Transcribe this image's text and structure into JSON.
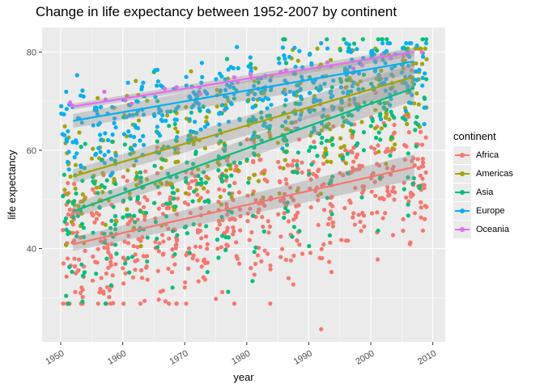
{
  "chart_data": {
    "type": "scatter",
    "title": "Change in life expectancy between 1952-2007 by continent",
    "xlabel": "year",
    "ylabel": "life expectancy",
    "xlim": [
      1947,
      2012
    ],
    "ylim": [
      21,
      85
    ],
    "x_ticks": [
      1950,
      1960,
      1970,
      1980,
      1990,
      2000,
      2010
    ],
    "y_ticks": [
      40,
      60,
      80
    ],
    "grid": true,
    "legend": {
      "title": "continent",
      "position": "right"
    },
    "series": [
      {
        "name": "Africa",
        "color": "#F8766D",
        "y_range": [
          28.8,
          76.4
        ],
        "mean_start": 39.1,
        "mean_slope": 0.31,
        "spread": 8,
        "trend": [
          [
            1952,
            40.9
          ],
          [
            2007,
            56.6
          ]
        ],
        "n": 624
      },
      {
        "name": "Americas",
        "color": "#A3A500",
        "y_range": [
          37.6,
          80.7
        ],
        "mean_start": 53.3,
        "mean_slope": 0.36,
        "spread": 7,
        "trend": [
          [
            1952,
            54.7
          ],
          [
            2007,
            75.0
          ]
        ],
        "n": 300
      },
      {
        "name": "Asia",
        "color": "#00BF7D",
        "y_range": [
          28.8,
          82.6
        ],
        "mean_start": 46.3,
        "mean_slope": 0.45,
        "spread": 10,
        "trend": [
          [
            1952,
            47.6
          ],
          [
            2007,
            72.7
          ]
        ],
        "n": 396
      },
      {
        "name": "Europe",
        "color": "#00B0F6",
        "y_range": [
          43.6,
          81.8
        ],
        "mean_start": 64.4,
        "mean_slope": 0.22,
        "spread": 4.5,
        "trend": [
          [
            1952,
            66.0
          ],
          [
            2007,
            78.1
          ]
        ],
        "n": 360
      },
      {
        "name": "Oceania",
        "color": "#E76BF3",
        "y_range": [
          69.1,
          81.2
        ],
        "mean_start": 69.3,
        "mean_slope": 0.2,
        "spread": 0.8,
        "trend": [
          [
            1952,
            68.9
          ],
          [
            2007,
            80.0
          ]
        ],
        "n": 24
      }
    ],
    "outliers": [
      {
        "series": "Africa",
        "x": 1992,
        "y": 23.6
      },
      {
        "series": "Asia",
        "x": 1977,
        "y": 31.2
      }
    ]
  }
}
